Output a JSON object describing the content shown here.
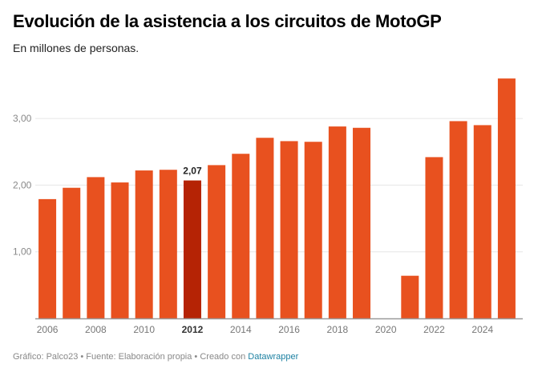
{
  "title": "Evolución de la asistencia a los circuitos de MotoGP",
  "subtitle": "En millones de personas.",
  "footer": {
    "text": "Gráfico: Palco23 • Fuente: Elaboración propia • Creado con ",
    "link": "Datawrapper"
  },
  "chart_data": {
    "type": "bar",
    "title": "Evolución de la asistencia a los circuitos de MotoGP",
    "ylabel": "En millones de personas",
    "ylim": [
      0,
      3.6
    ],
    "yticks": [
      {
        "v": 1,
        "label": "1,00"
      },
      {
        "v": 2,
        "label": "2,00"
      },
      {
        "v": 3,
        "label": "3,00"
      }
    ],
    "categories": [
      "2006",
      "2007",
      "2008",
      "2009",
      "2010",
      "2011",
      "2012",
      "2013",
      "2014",
      "2015",
      "2016",
      "2017",
      "2018",
      "2019",
      "2020",
      "2021",
      "2022",
      "2023",
      "2024",
      "2025"
    ],
    "values": [
      1.79,
      1.96,
      2.12,
      2.04,
      2.22,
      2.23,
      2.07,
      2.3,
      2.47,
      2.71,
      2.66,
      2.65,
      2.88,
      2.86,
      null,
      0.64,
      2.42,
      2.96,
      2.9,
      3.6
    ],
    "xtick_labels": [
      "2006",
      "2008",
      "2010",
      "2012",
      "2014",
      "2016",
      "2018",
      "2020",
      "2022",
      "2024"
    ],
    "highlight": {
      "category": "2012",
      "label": "2,07"
    },
    "colors": {
      "bar": "#e8511f",
      "highlight": "#b52305",
      "grid": "#e6e6e6",
      "axis": "#999999"
    }
  }
}
